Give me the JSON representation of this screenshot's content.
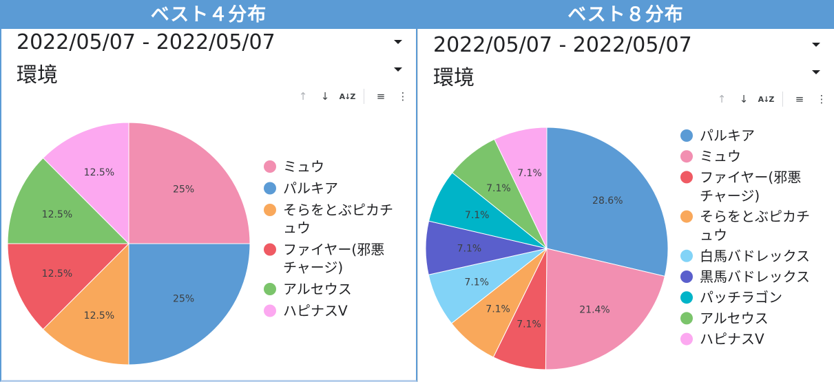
{
  "panels": [
    {
      "banner": "ベスト４分布",
      "date_range": "2022/05/07 - 2022/05/07",
      "filter_label": "環境"
    },
    {
      "banner": "ベスト８分布",
      "date_range": "2022/05/07 - 2022/05/07",
      "filter_label": "環境"
    }
  ],
  "toolbar_icons": [
    "arrow-up-icon",
    "arrow-down-icon",
    "sort-az-icon",
    "filter-icon",
    "more-vert-icon"
  ],
  "chart_data": [
    {
      "type": "pie",
      "categories": [
        "ミュウ",
        "パルキア",
        "そらをとぶピカチュウ",
        "ファイヤー(邪悪チャージ)",
        "アルセウス",
        "ハピナスV"
      ],
      "legend_lines": [
        [
          "ミュウ"
        ],
        [
          "パルキア"
        ],
        [
          "そらをとぶピカチ",
          "ュウ"
        ],
        [
          "ファイヤー(邪悪",
          "チャージ)"
        ],
        [
          "アルセウス"
        ],
        [
          "ハピナスV"
        ]
      ],
      "values": [
        25,
        25,
        12.5,
        12.5,
        12.5,
        12.5
      ],
      "labels": [
        "25%",
        "25%",
        "12.5%",
        "12.5%",
        "12.5%",
        "12.5%"
      ],
      "colors": [
        "#f28fb1",
        "#5b9bd5",
        "#f9a85b",
        "#ef5a63",
        "#7bc46b",
        "#fca8f0"
      ],
      "legend_position": "right"
    },
    {
      "type": "pie",
      "categories": [
        "パルキア",
        "ミュウ",
        "ファイヤー(邪悪チャージ)",
        "そらをとぶピカチュウ",
        "白馬バドレックス",
        "黒馬バドレックス",
        "パッチラゴン",
        "アルセウス",
        "ハピナスV"
      ],
      "legend_lines": [
        [
          "パルキア"
        ],
        [
          "ミュウ"
        ],
        [
          "ファイヤー(邪悪",
          "チャージ)"
        ],
        [
          "そらをとぶピカチ",
          "ュウ"
        ],
        [
          "白馬バドレックス"
        ],
        [
          "黒馬バドレックス"
        ],
        [
          "パッチラゴン"
        ],
        [
          "アルセウス"
        ],
        [
          "ハピナスV"
        ]
      ],
      "values": [
        28.6,
        21.4,
        7.1,
        7.1,
        7.1,
        7.1,
        7.1,
        7.1,
        7.1
      ],
      "labels": [
        "28.6%",
        "21.4%",
        "7.1%",
        "7.1%",
        "7.1%",
        "7.1%",
        "7.1%",
        "7.1%",
        "7.1%"
      ],
      "colors": [
        "#5b9bd5",
        "#f28fb1",
        "#ef5a63",
        "#f9a85b",
        "#82d3f7",
        "#5a5fcc",
        "#00b4c8",
        "#7bc46b",
        "#fca8f0"
      ],
      "legend_position": "right"
    }
  ]
}
